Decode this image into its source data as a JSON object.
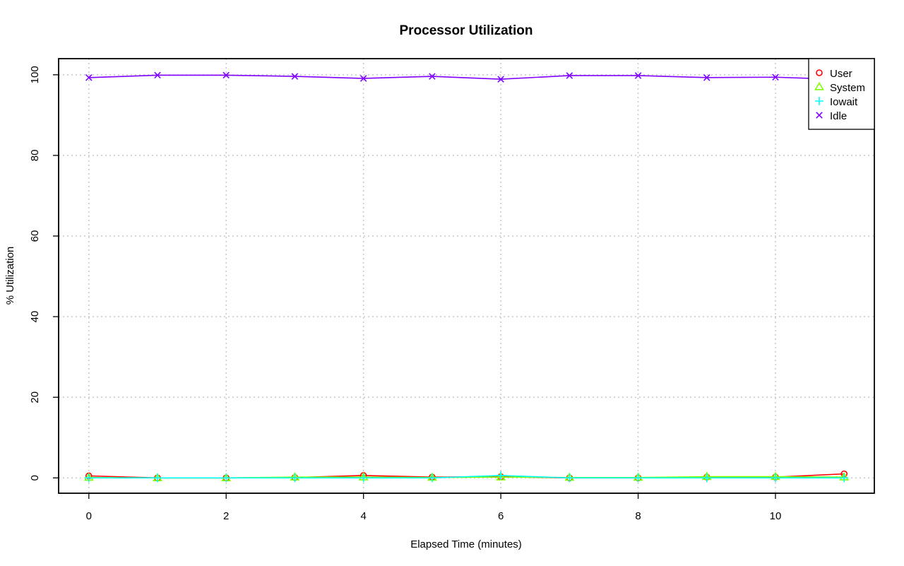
{
  "chart_data": {
    "type": "line",
    "title": "Processor Utilization",
    "xlabel": "Elapsed Time (minutes)",
    "ylabel": "% Utilization",
    "xlim": [
      -0.44,
      11.44
    ],
    "ylim": [
      -3.8,
      104
    ],
    "x_ticks": [
      0,
      2,
      4,
      6,
      8,
      10
    ],
    "y_ticks": [
      0,
      20,
      40,
      60,
      80,
      100
    ],
    "grid": true,
    "legend_position": "top-right",
    "x": [
      0,
      1,
      2,
      3,
      4,
      5,
      6,
      7,
      8,
      9,
      10,
      11
    ],
    "series": [
      {
        "name": "User",
        "color": "#ff0000",
        "marker": "circle",
        "values": [
          0.5,
          0.0,
          0.0,
          0.1,
          0.6,
          0.2,
          0.3,
          0.0,
          0.0,
          0.2,
          0.2,
          1.0
        ]
      },
      {
        "name": "System",
        "color": "#80ff00",
        "marker": "triangle",
        "values": [
          0.1,
          0.0,
          0.0,
          0.2,
          0.2,
          0.1,
          0.2,
          0.1,
          0.1,
          0.3,
          0.3,
          0.2
        ]
      },
      {
        "name": "Iowait",
        "color": "#00ffff",
        "marker": "plus",
        "values": [
          0.0,
          0.0,
          0.0,
          0.0,
          0.0,
          0.0,
          0.6,
          0.0,
          0.0,
          0.0,
          0.0,
          0.0
        ]
      },
      {
        "name": "Idle",
        "color": "#8000ff",
        "marker": "cross",
        "values": [
          99.3,
          99.9,
          99.9,
          99.6,
          99.1,
          99.6,
          98.9,
          99.8,
          99.8,
          99.3,
          99.4,
          98.8
        ]
      }
    ]
  }
}
